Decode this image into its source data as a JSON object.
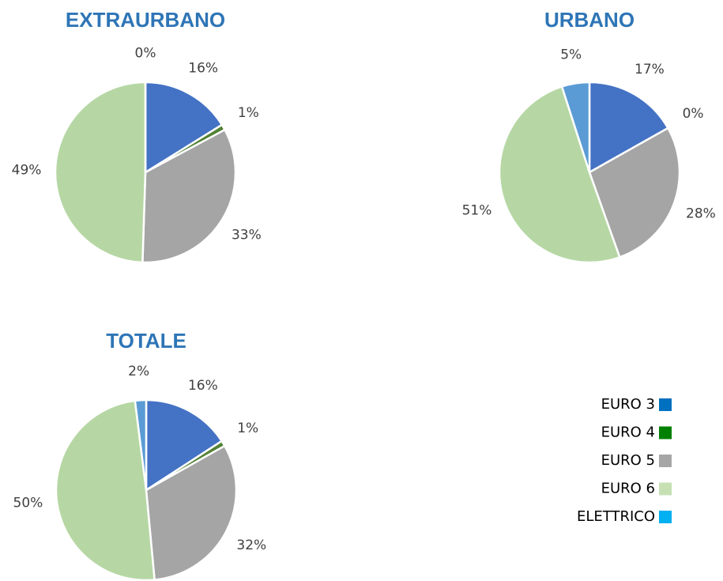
{
  "chart_data": [
    {
      "type": "pie",
      "title": "EXTRAURBANO",
      "values": [
        16,
        1,
        33,
        49,
        0
      ],
      "value_labels": [
        "16%",
        "1%",
        "33%",
        "49%",
        "0%"
      ],
      "colors": [
        "#4472c4",
        "#548235",
        "#a5a5a5",
        "#b6d7a4",
        "#5b9bd5"
      ]
    },
    {
      "type": "pie",
      "title": "URBANO",
      "values": [
        17,
        0,
        28,
        51,
        5
      ],
      "value_labels": [
        "17%",
        "0%",
        "28%",
        "51%",
        "5%"
      ],
      "colors": [
        "#4472c4",
        "#548235",
        "#a5a5a5",
        "#b6d7a4",
        "#5b9bd5"
      ]
    },
    {
      "type": "pie",
      "title": "TOTALE",
      "values": [
        16,
        1,
        32,
        50,
        2
      ],
      "value_labels": [
        "16%",
        "1%",
        "32%",
        "50%",
        "2%"
      ],
      "colors": [
        "#4472c4",
        "#548235",
        "#a5a5a5",
        "#b6d7a4",
        "#5b9bd5"
      ]
    }
  ],
  "legend": {
    "items": [
      {
        "name": "EURO 3",
        "color": "#0070c0"
      },
      {
        "name": "EURO 4",
        "color": "#008000"
      },
      {
        "name": "EURO 5",
        "color": "#a6a6a6"
      },
      {
        "name": "EURO 6",
        "color": "#c6e0b4"
      },
      {
        "name": "ELETTRICO",
        "color": "#00b0f0"
      }
    ]
  }
}
